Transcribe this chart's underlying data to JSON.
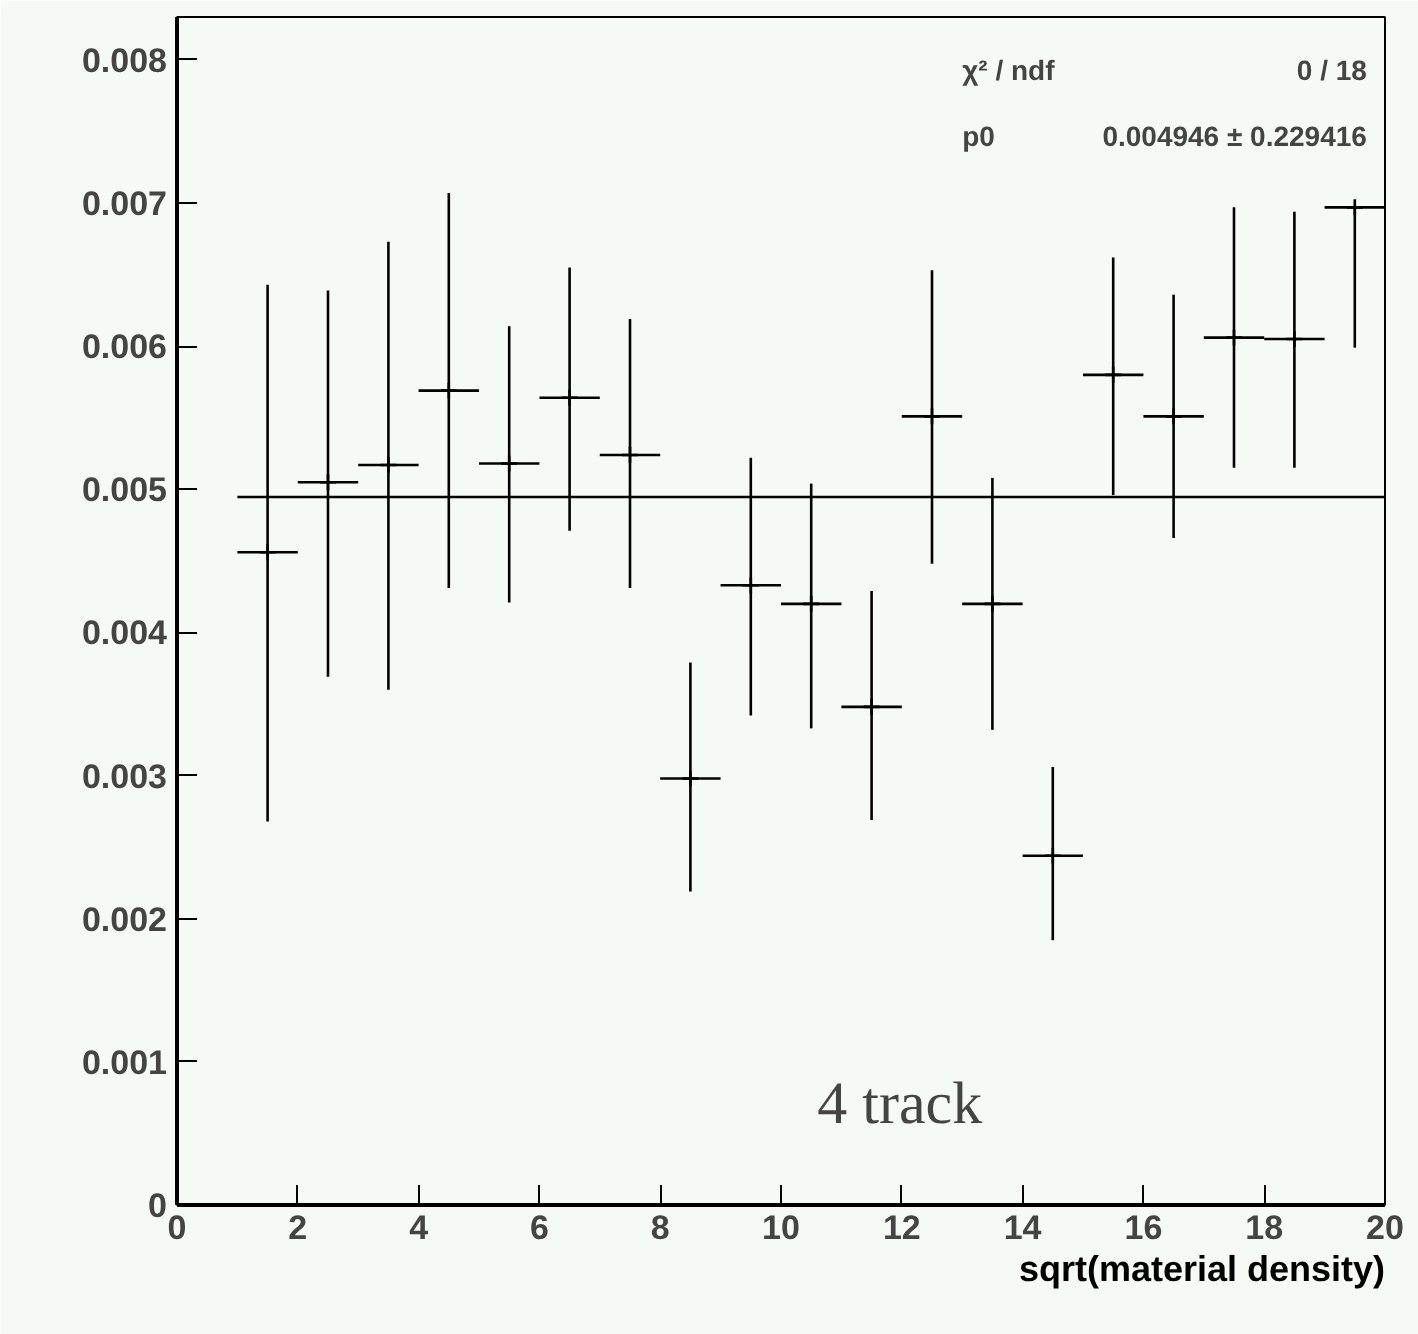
{
  "chart_data": {
    "type": "scatter",
    "xlabel": "sqrt(material density)",
    "xlim": [
      0,
      20
    ],
    "xticks": [
      0,
      2,
      4,
      6,
      8,
      10,
      12,
      14,
      16,
      18,
      20
    ],
    "ylim": [
      0,
      0.0083
    ],
    "yticks": [
      0,
      0.001,
      0.002,
      0.003,
      0.004,
      0.005,
      0.006,
      0.007,
      0.008
    ],
    "grid": false,
    "marker": "cross",
    "series": [
      {
        "color": "#000000",
        "x": [
          1.5,
          2.5,
          3.5,
          4.5,
          5.5,
          6.5,
          7.5,
          8.5,
          9.5,
          10.5,
          11.5,
          12.5,
          13.5,
          14.5,
          15.5,
          16.5,
          17.5,
          18.5,
          19.5
        ],
        "values": [
          0.00456,
          0.00505,
          0.00517,
          0.00569,
          0.00518,
          0.00564,
          0.00524,
          0.00298,
          0.00433,
          0.0042,
          0.00348,
          0.00551,
          0.0042,
          0.00244,
          0.0058,
          0.00551,
          0.00606,
          0.00605,
          0.00697
        ],
        "errors": [
          [
            0.00268,
            0.00643
          ],
          [
            0.00369,
            0.00639
          ],
          [
            0.0036,
            0.00673
          ],
          [
            0.00431,
            0.00707
          ],
          [
            0.00421,
            0.00614
          ],
          [
            0.00471,
            0.00655
          ],
          [
            0.00431,
            0.00619
          ],
          [
            0.00219,
            0.00379
          ],
          [
            0.00342,
            0.00522
          ],
          [
            0.00333,
            0.00504
          ],
          [
            0.00269,
            0.00429
          ],
          [
            0.00448,
            0.00653
          ],
          [
            0.00332,
            0.00508
          ],
          [
            0.00185,
            0.00306
          ],
          [
            0.00496,
            0.00662
          ],
          [
            0.00466,
            0.00636
          ],
          [
            0.00515,
            0.00697
          ],
          [
            0.00515,
            0.00694
          ],
          [
            0.00599,
            0.00697
          ]
        ],
        "xerrors": [
          0.5,
          0.5,
          0.5,
          0.5,
          0.5,
          0.5,
          0.5,
          0.5,
          0.5,
          0.5,
          0.5,
          0.5,
          0.5,
          0.5,
          0.5,
          0.5,
          0.5,
          0.5,
          0.5
        ]
      },
      {
        "type": "line",
        "color": "#000000",
        "x": [
          1,
          20
        ],
        "values": [
          0.004946,
          0.004946
        ],
        "line_style": "solid",
        "marker": "none"
      }
    ],
    "annotations": [
      "χ² / ndf",
      "0 / 18",
      "p0",
      "0.004946 ± 0.229416",
      "4 track"
    ]
  }
}
